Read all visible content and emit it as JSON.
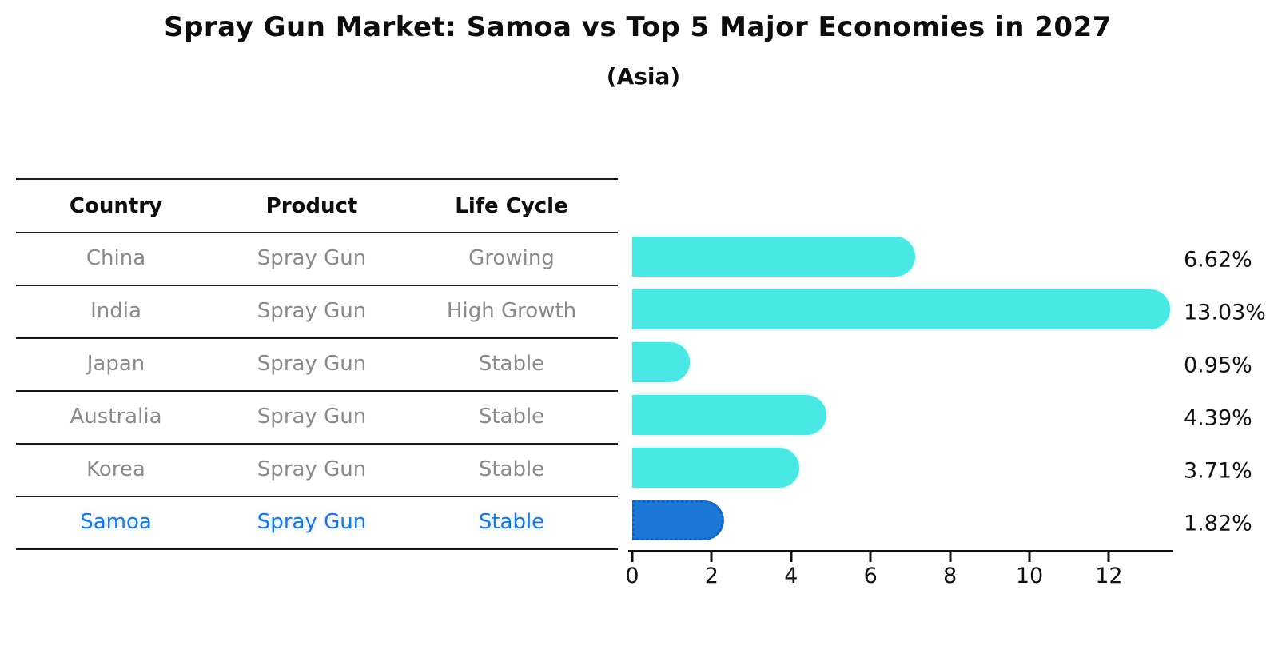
{
  "title": "Spray Gun Market: Samoa vs Top 5 Major Economies in 2027",
  "subtitle": "(Asia)",
  "table": {
    "headers": [
      "Country",
      "Product",
      "Life Cycle"
    ],
    "rows": [
      {
        "country": "China",
        "product": "Spray Gun",
        "life_cycle": "Growing",
        "highlight": false
      },
      {
        "country": "India",
        "product": "Spray Gun",
        "life_cycle": "High Growth",
        "highlight": false
      },
      {
        "country": "Japan",
        "product": "Spray Gun",
        "life_cycle": "Stable",
        "highlight": false
      },
      {
        "country": "Australia",
        "product": "Spray Gun",
        "life_cycle": "Stable",
        "highlight": false
      },
      {
        "country": "Korea",
        "product": "Spray Gun",
        "life_cycle": "Stable",
        "highlight": false
      },
      {
        "country": "Samoa",
        "product": "Spray Gun",
        "life_cycle": "Stable",
        "highlight": true
      }
    ]
  },
  "chart_data": {
    "type": "bar",
    "orientation": "horizontal",
    "title": "Spray Gun Market: Samoa vs Top 5 Major Economies in 2027",
    "subtitle": "(Asia)",
    "categories": [
      "China",
      "India",
      "Japan",
      "Australia",
      "Korea",
      "Samoa"
    ],
    "values": [
      6.62,
      13.03,
      0.95,
      4.39,
      3.71,
      1.82
    ],
    "value_labels": [
      "6.62%",
      "13.03%",
      "0.95%",
      "4.39%",
      "3.71%",
      "1.82%"
    ],
    "highlight_index": 5,
    "x_ticks": [
      "0",
      "2",
      "4",
      "6",
      "8",
      "10",
      "12"
    ],
    "x_tick_values": [
      0,
      2,
      4,
      6,
      8,
      10,
      12
    ],
    "xlim": [
      0,
      13.6
    ],
    "grid": false,
    "legend": false,
    "bar_color": "#4ae8e4",
    "highlight_color": "#1d77d6",
    "highlight_text_color": "#1f77d4",
    "text_color": "#111111",
    "muted_text_color": "#8a8a8a"
  }
}
